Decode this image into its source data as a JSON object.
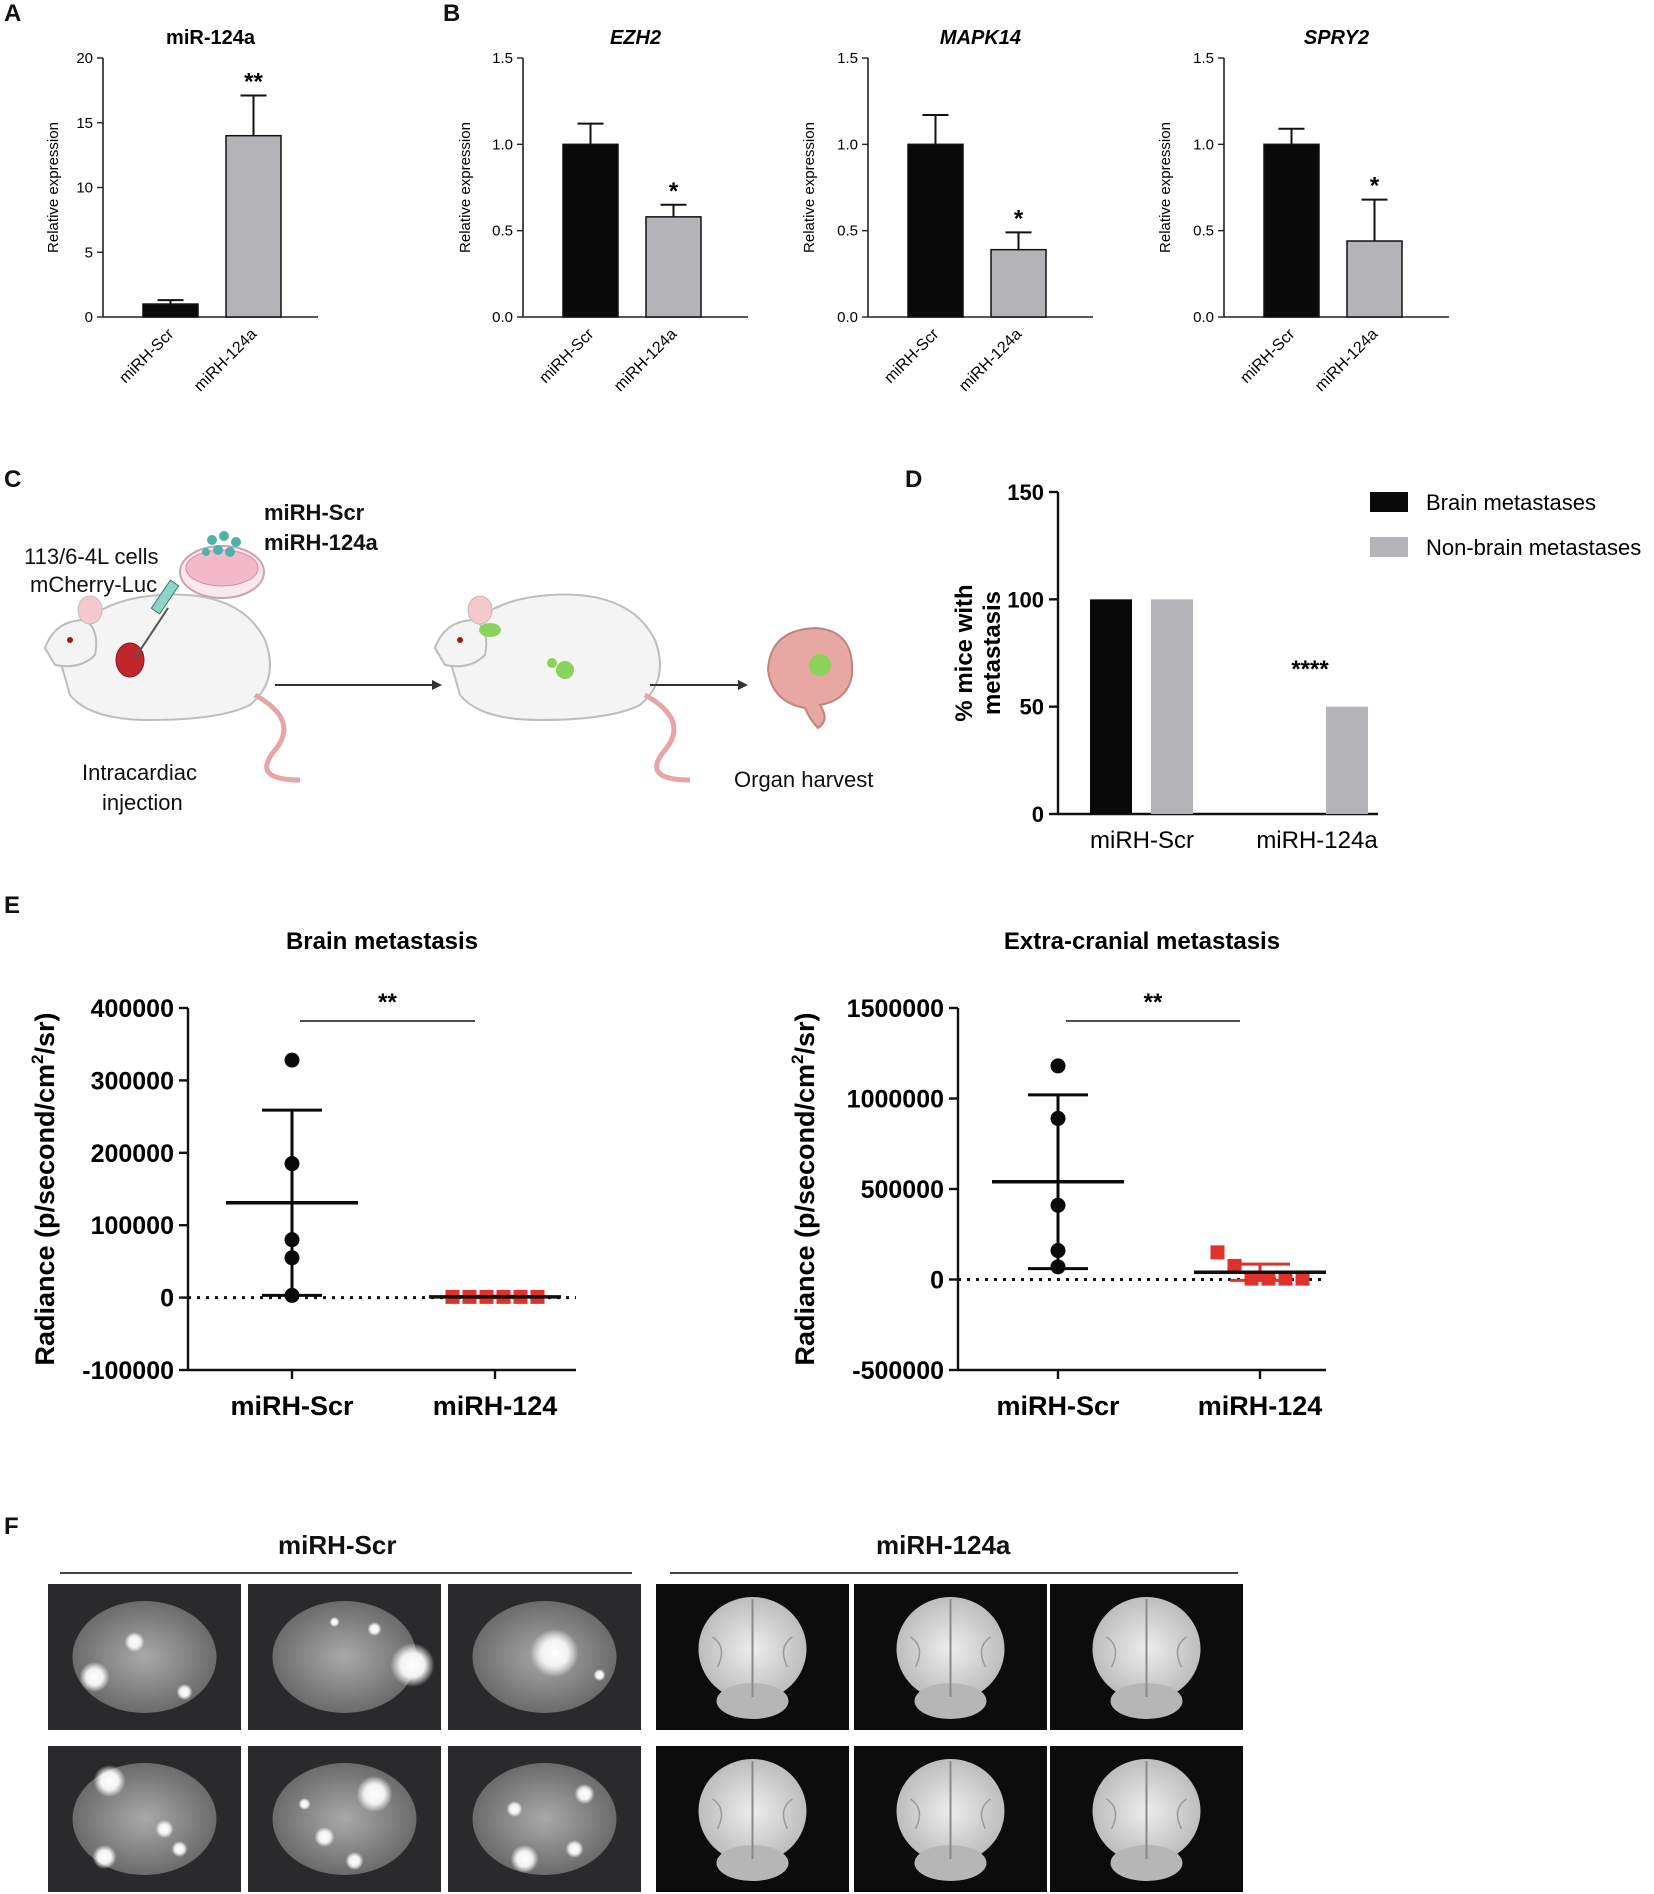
{
  "panel_letters": {
    "A": "A",
    "B": "B",
    "C": "C",
    "D": "D",
    "E": "E",
    "F": "F"
  },
  "colors": {
    "black_bar": "#0a0a0a",
    "grey_bar": "#b3b3b8",
    "red_points": "#e0312a",
    "black_points": "#0a0a0a"
  },
  "schematic": {
    "cells_line1": "113/6-4L cells",
    "cells_line2": "mCherry-Luc",
    "group1": "miRH-Scr",
    "group2": "miRH-124a",
    "step1_line1": "Intracardiac",
    "step1_line2": "injection",
    "step2": "Organ harvest",
    "icons": [
      "mouse-icon",
      "syringe-icon",
      "petri-dish-icon",
      "brain-icon",
      "arrow-icon"
    ]
  },
  "photos": {
    "group1_label": "miRH-Scr",
    "group2_label": "miRH-124a"
  },
  "chart_data": [
    {
      "id": "A",
      "type": "bar",
      "title": "miR-124a",
      "ylabel": "Relative expression",
      "ylim": [
        0,
        20
      ],
      "yticks": [
        "0",
        "5",
        "10",
        "15",
        "20"
      ],
      "categories": [
        "miRH-Scr",
        "miRH-124a"
      ],
      "values": [
        1.0,
        14.0
      ],
      "errors": [
        0.3,
        3.1
      ],
      "colors": [
        "#0a0a0a",
        "#b3b3b8"
      ],
      "annotations": [
        "",
        "**"
      ]
    },
    {
      "id": "B1",
      "type": "bar",
      "title": "EZH2",
      "italic_title": true,
      "ylabel": "Relative expression",
      "ylim": [
        0,
        1.5
      ],
      "yticks": [
        "0.0",
        "0.5",
        "1.0",
        "1.5"
      ],
      "categories": [
        "miRH-Scr",
        "miRH-124a"
      ],
      "values": [
        1.0,
        0.58
      ],
      "errors": [
        0.12,
        0.07
      ],
      "colors": [
        "#0a0a0a",
        "#b3b3b8"
      ],
      "annotations": [
        "",
        "*"
      ]
    },
    {
      "id": "B2",
      "type": "bar",
      "title": "MAPK14",
      "italic_title": true,
      "ylabel": "Relative expression",
      "ylim": [
        0,
        1.5
      ],
      "yticks": [
        "0.0",
        "0.5",
        "1.0",
        "1.5"
      ],
      "categories": [
        "miRH-Scr",
        "miRH-124a"
      ],
      "values": [
        1.0,
        0.39
      ],
      "errors": [
        0.17,
        0.1
      ],
      "colors": [
        "#0a0a0a",
        "#b3b3b8"
      ],
      "annotations": [
        "",
        "*"
      ]
    },
    {
      "id": "B3",
      "type": "bar",
      "title": "SPRY2",
      "italic_title": true,
      "ylabel": "Relative expression",
      "ylim": [
        0,
        1.5
      ],
      "yticks": [
        "0.0",
        "0.5",
        "1.0",
        "1.5"
      ],
      "categories": [
        "miRH-Scr",
        "miRH-124a"
      ],
      "values": [
        1.0,
        0.44
      ],
      "errors": [
        0.09,
        0.24
      ],
      "colors": [
        "#0a0a0a",
        "#b3b3b8"
      ],
      "annotations": [
        "",
        "*"
      ]
    },
    {
      "id": "D",
      "type": "bar",
      "title": "",
      "ylabel": "% mice with metastasis",
      "ylim": [
        0,
        150
      ],
      "yticks": [
        "0",
        "50",
        "100",
        "150"
      ],
      "categories": [
        "miRH-Scr",
        "miRH-124a"
      ],
      "series": [
        {
          "name": "Brain metastases",
          "values": [
            100,
            0
          ],
          "color": "#0a0a0a"
        },
        {
          "name": "Non-brain metastases",
          "values": [
            100,
            50
          ],
          "color": "#b3b3b8"
        }
      ],
      "annotation": "****",
      "legend_position": "top-right"
    },
    {
      "id": "E1",
      "type": "scatter",
      "title": "Brain metastasis",
      "ylabel": "Radiance (p/second/cm2/sr)",
      "ylim": [
        -100000,
        400000
      ],
      "yticks": [
        "-100000",
        "0",
        "100000",
        "200000",
        "300000",
        "400000"
      ],
      "categories": [
        "miRH-Scr",
        "miRH-124"
      ],
      "groups": [
        {
          "name": "miRH-Scr",
          "points": [
            328000,
            185000,
            80000,
            55000,
            3000
          ],
          "mean": 131000,
          "sd_low": 3000,
          "sd_high": 259000,
          "marker": "circle",
          "color": "#0a0a0a"
        },
        {
          "name": "miRH-124",
          "points": [
            1000,
            1000,
            1000,
            1000,
            1000,
            1000
          ],
          "mean": 1000,
          "sd_low": 0,
          "sd_high": 2000,
          "marker": "square",
          "color": "#e0312a"
        }
      ],
      "significance": "**",
      "zero_line": "dotted"
    },
    {
      "id": "E2",
      "type": "scatter",
      "title": "Extra-cranial metastasis",
      "ylabel": "Radiance (p/second/cm2/sr)",
      "ylim": [
        -500000,
        1500000
      ],
      "yticks": [
        "-500000",
        "0",
        "500000",
        "1000000",
        "1500000"
      ],
      "categories": [
        "miRH-Scr",
        "miRH-124"
      ],
      "groups": [
        {
          "name": "miRH-Scr",
          "points": [
            1180000,
            890000,
            410000,
            160000,
            70000
          ],
          "mean": 540000,
          "sd_low": 60000,
          "sd_high": 1020000,
          "marker": "circle",
          "color": "#0a0a0a"
        },
        {
          "name": "miRH-124",
          "points": [
            150000,
            75000,
            5000,
            5000,
            5000,
            5000
          ],
          "mean": 40000,
          "sd_low": -5000,
          "sd_high": 85000,
          "marker": "square",
          "color": "#e0312a"
        }
      ],
      "significance": "**",
      "zero_line": "dotted"
    }
  ]
}
